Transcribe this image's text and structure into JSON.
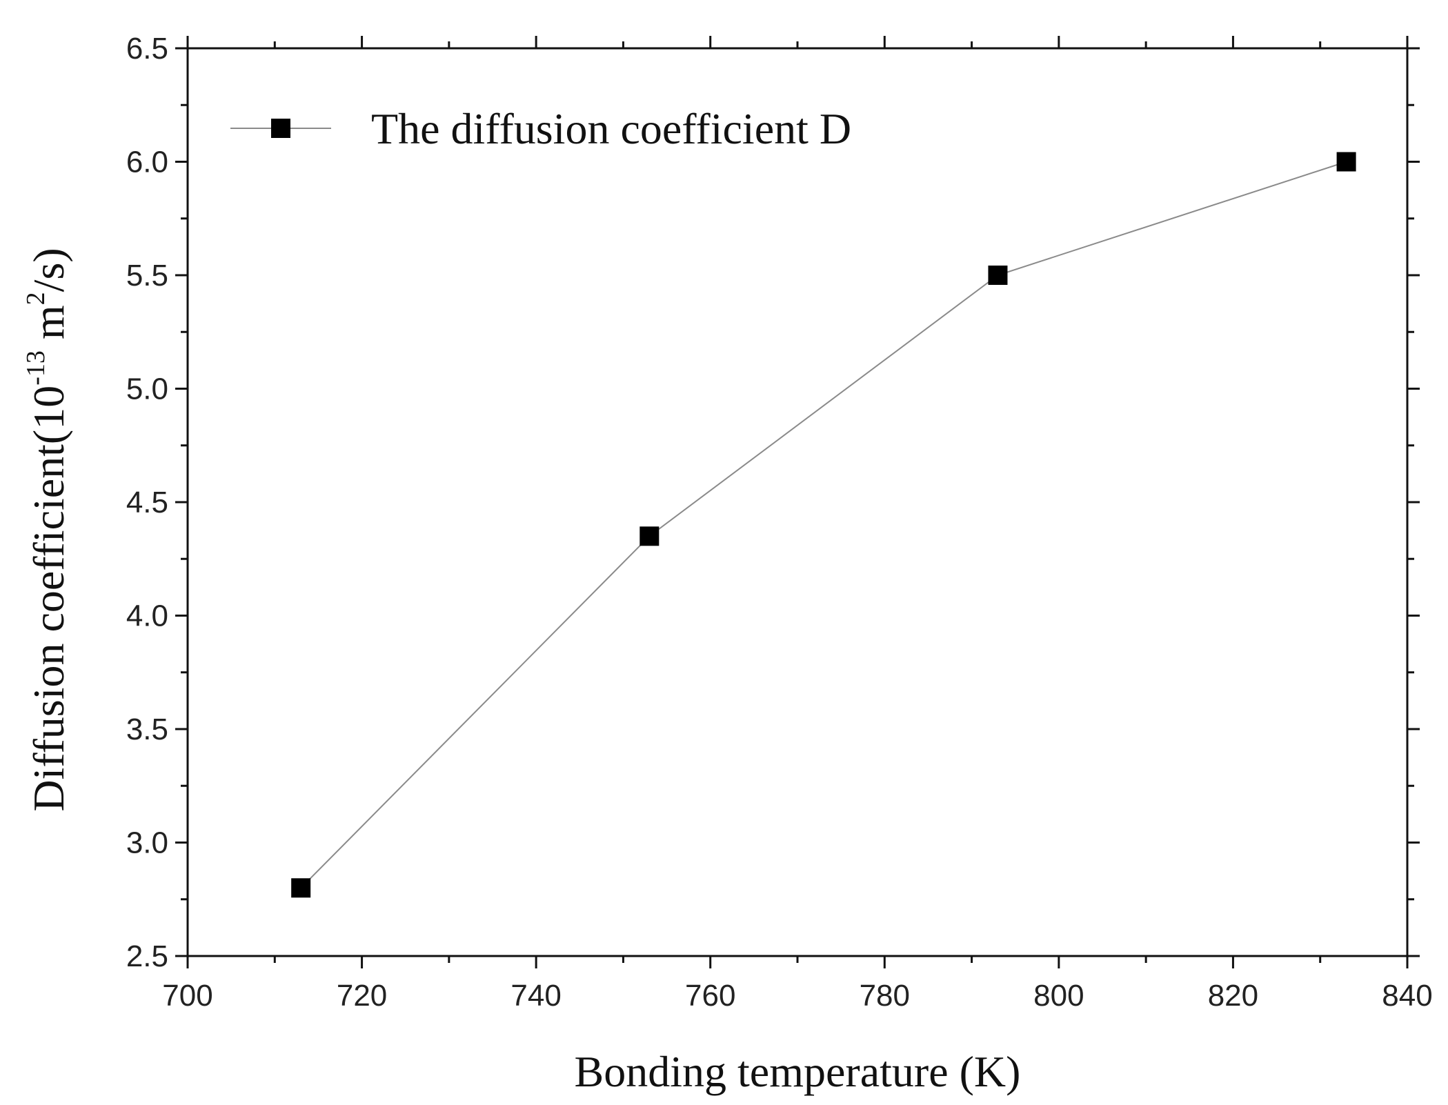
{
  "chart_data": {
    "type": "line",
    "title": "",
    "xlabel": "Bonding temperature (K)",
    "ylabel": {
      "main": "Diffusion coefficient(10",
      "exp": "-13",
      "mid": " m",
      "exp2": "2",
      "end": "/s)"
    },
    "xlim": [
      700,
      840
    ],
    "ylim": [
      2.5,
      6.5
    ],
    "x_ticks": [
      "700",
      "720",
      "740",
      "760",
      "780",
      "800",
      "820",
      "840"
    ],
    "y_ticks": [
      "2.5",
      "3.0",
      "3.5",
      "4.0",
      "4.5",
      "5.0",
      "5.5",
      "6.0",
      "6.5"
    ],
    "grid": false,
    "legend_position": "top-left",
    "series": [
      {
        "name": "The diffusion coefficient D",
        "marker": "square",
        "color": "#000000",
        "line_color": "#8a8a8a",
        "x": [
          713,
          753,
          793,
          833
        ],
        "y": [
          2.8,
          4.35,
          5.5,
          6.0
        ]
      }
    ]
  }
}
